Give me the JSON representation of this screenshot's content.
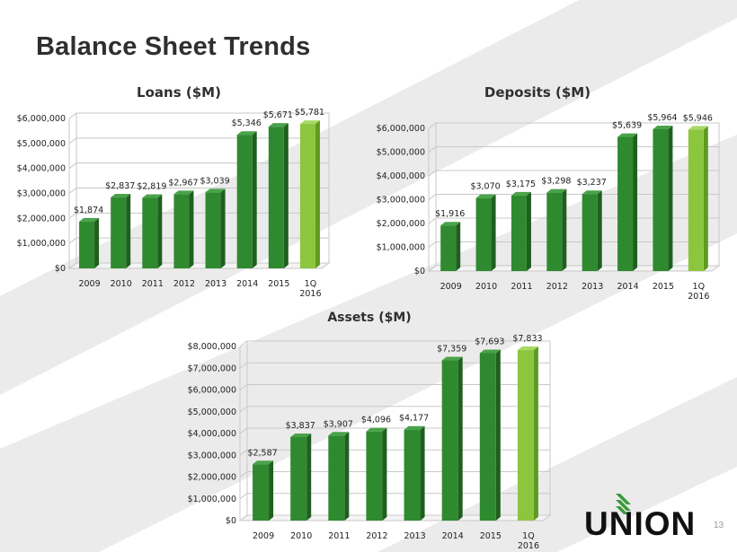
{
  "page": {
    "title": "Balance Sheet Trends",
    "page_number": "13",
    "logo_text": "UNION"
  },
  "colors": {
    "bar": "#2f8a2f",
    "bar_side": "#1f5f1f",
    "bar_top": "#4aa34a",
    "highlight": "#8cc63f",
    "highlight_side": "#5f9a20",
    "highlight_top": "#a9d965",
    "grid": "#c8c8c8",
    "title_text": "#2f2f2f",
    "background_stripe": "#e6e6e6",
    "logo_green": "#3a9a3a"
  },
  "chart_data": [
    {
      "type": "bar",
      "title": "Loans ($M)",
      "categories": [
        "2009",
        "2010",
        "2011",
        "2012",
        "2013",
        "2014",
        "2015",
        "1Q 2016"
      ],
      "values": [
        1874000,
        2837000,
        2819000,
        2967000,
        3039000,
        5346000,
        5671000,
        5781000
      ],
      "data_labels": [
        "$1,874",
        "$2,837",
        "$2,819",
        "$2,967",
        "$3,039",
        "$5,346",
        "$5,671",
        "$5,781"
      ],
      "yticks": [
        "$0",
        "$1,000,000",
        "$2,000,000",
        "$3,000,000",
        "$4,000,000",
        "$5,000,000",
        "$6,000,000"
      ],
      "ylim": [
        0,
        6000000
      ],
      "grid": true
    },
    {
      "type": "bar",
      "title": "Deposits ($M)",
      "categories": [
        "2009",
        "2010",
        "2011",
        "2012",
        "2013",
        "2014",
        "2015",
        "1Q 2016"
      ],
      "values": [
        1916000,
        3070000,
        3175000,
        3298000,
        3237000,
        5639000,
        5964000,
        5946000
      ],
      "data_labels": [
        "$1,916",
        "$3,070",
        "$3,175",
        "$3,298",
        "$3,237",
        "$5,639",
        "$5,964",
        "$5,946"
      ],
      "yticks": [
        "$0",
        "$1,000,000",
        "$2,000,000",
        "$3,000,000",
        "$4,000,000",
        "$5,000,000",
        "$6,000,000"
      ],
      "ylim": [
        0,
        6000000
      ],
      "grid": true
    },
    {
      "type": "bar",
      "title": "Assets ($M)",
      "categories": [
        "2009",
        "2010",
        "2011",
        "2012",
        "2013",
        "2014",
        "2015",
        "1Q 2016"
      ],
      "values": [
        2587000,
        3837000,
        3907000,
        4096000,
        4177000,
        7359000,
        7693000,
        7833000
      ],
      "data_labels": [
        "$2,587",
        "$3,837",
        "$3,907",
        "$4,096",
        "$4,177",
        "$7,359",
        "$7,693",
        "$7,833"
      ],
      "yticks": [
        "$0",
        "$1,000,000",
        "$2,000,000",
        "$3,000,000",
        "$4,000,000",
        "$5,000,000",
        "$6,000,000",
        "$7,000,000",
        "$8,000,000"
      ],
      "ylim": [
        0,
        8000000
      ],
      "grid": true
    }
  ]
}
